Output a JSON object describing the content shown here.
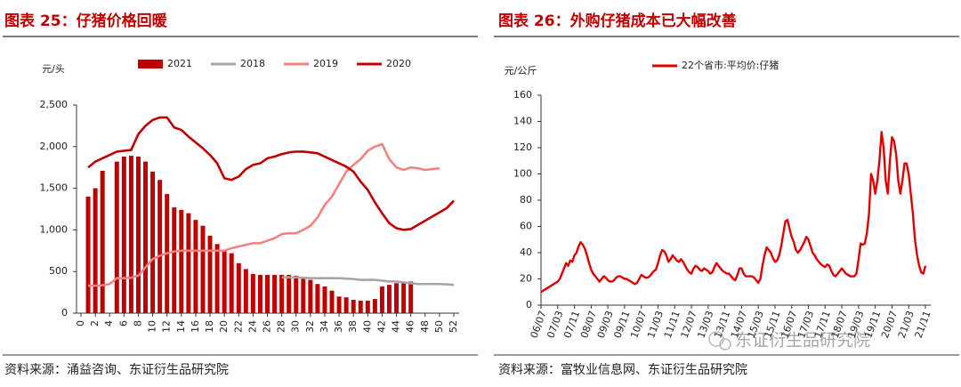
{
  "chart_data": [
    {
      "type": "bar",
      "title": "图表 25：仔猪价格回暖",
      "source": "资料来源：涌益咨询、东证衍生品研究院",
      "y_label": "元/头",
      "x": [
        1,
        2,
        3,
        4,
        5,
        6,
        7,
        8,
        9,
        10,
        11,
        12,
        13,
        14,
        15,
        16,
        17,
        18,
        19,
        20,
        21,
        22,
        23,
        24,
        25,
        26,
        27,
        28,
        29,
        30,
        31,
        32,
        33,
        34,
        35,
        36,
        37,
        38,
        39,
        40,
        41,
        42,
        43,
        44,
        45,
        46,
        47,
        48,
        49,
        50,
        51,
        52
      ],
      "xlim": [
        0,
        52
      ],
      "xticks": [
        0,
        2,
        4,
        6,
        8,
        10,
        12,
        14,
        16,
        18,
        20,
        22,
        24,
        26,
        28,
        30,
        32,
        34,
        36,
        38,
        40,
        42,
        44,
        46,
        48,
        50,
        52
      ],
      "ylim": [
        0,
        2500
      ],
      "yticks": [
        0,
        500,
        {
          "value": 1000,
          "label": "1,000"
        },
        {
          "value": 1500,
          "label": "1,500"
        },
        {
          "value": 2000,
          "label": "2,000"
        },
        {
          "value": 2500,
          "label": "2,500"
        }
      ],
      "series": [
        {
          "name": "2021",
          "type": "bar",
          "color": "#c00000",
          "values": [
            1400,
            1500,
            1710,
            null,
            1820,
            1880,
            1890,
            1880,
            1820,
            1700,
            1600,
            1430,
            1270,
            1240,
            1200,
            1120,
            1050,
            930,
            830,
            750,
            720,
            600,
            530,
            470,
            460,
            460,
            460,
            460,
            460,
            450,
            420,
            400,
            350,
            320,
            270,
            200,
            190,
            160,
            150,
            150,
            170,
            320,
            340,
            360,
            370,
            380,
            null,
            null,
            null,
            null,
            null,
            null
          ]
        },
        {
          "name": "2018",
          "type": "line",
          "color": "#a6a6a6",
          "values": [
            null,
            null,
            null,
            null,
            null,
            null,
            null,
            null,
            null,
            null,
            null,
            null,
            null,
            null,
            null,
            null,
            null,
            null,
            null,
            null,
            null,
            null,
            null,
            null,
            null,
            null,
            null,
            430,
            430,
            430,
            425,
            420,
            420,
            420,
            420,
            420,
            415,
            410,
            400,
            400,
            400,
            390,
            380,
            380,
            370,
            360,
            350,
            350,
            350,
            350,
            345,
            340
          ]
        },
        {
          "name": "2019",
          "type": "line",
          "color": "#f4817f",
          "values": [
            330,
            330,
            335,
            350,
            420,
            420,
            425,
            450,
            550,
            650,
            690,
            720,
            740,
            750,
            750,
            750,
            750,
            750,
            750,
            750,
            780,
            800,
            820,
            840,
            840,
            870,
            900,
            950,
            960,
            960,
            1000,
            1050,
            1150,
            1300,
            1400,
            1550,
            1700,
            1780,
            1850,
            1950,
            2000,
            2030,
            1850,
            1750,
            1720,
            1750,
            1740,
            1720,
            1730,
            1740,
            null,
            null
          ]
        },
        {
          "name": "2020",
          "type": "line",
          "color": "#c00000",
          "values": [
            1750,
            1820,
            1860,
            1900,
            1940,
            1950,
            1960,
            2150,
            2250,
            2320,
            2350,
            2350,
            2230,
            2200,
            2120,
            2050,
            1980,
            1900,
            1800,
            1620,
            1600,
            1640,
            1730,
            1780,
            1800,
            1860,
            1880,
            1910,
            1930,
            1940,
            1940,
            1930,
            1920,
            1880,
            1840,
            1800,
            1760,
            1700,
            1580,
            1480,
            1330,
            1200,
            1080,
            1020,
            1000,
            1010,
            1060,
            1110,
            1160,
            1210,
            1260,
            1350
          ]
        }
      ]
    },
    {
      "type": "line",
      "title": "图表 26：外购仔猪成本已大幅改善",
      "source": "资料来源：富牧业信息网、东证衍生品研究院",
      "y_label": "元/公斤",
      "categories": [
        "06/07",
        null,
        null,
        null,
        null,
        null,
        null,
        null,
        "07/03",
        null,
        null,
        null,
        null,
        null,
        null,
        null,
        "07/11",
        null,
        null,
        null,
        null,
        null,
        null,
        null,
        "08/07",
        null,
        null,
        null,
        null,
        null,
        null,
        null,
        "09/03",
        null,
        null,
        null,
        null,
        null,
        null,
        null,
        "09/11",
        null,
        null,
        null,
        null,
        null,
        null,
        null,
        "10/07",
        null,
        null,
        null,
        null,
        null,
        null,
        null,
        "11/03",
        null,
        null,
        null,
        null,
        null,
        null,
        null,
        "11/11",
        null,
        null,
        null,
        null,
        null,
        null,
        null,
        "12/07",
        null,
        null,
        null,
        null,
        null,
        null,
        null,
        "13/03",
        null,
        null,
        null,
        null,
        null,
        null,
        null,
        "13/11",
        null,
        null,
        null,
        null,
        null,
        null,
        null,
        "14/07",
        null,
        null,
        null,
        null,
        null,
        null,
        null,
        "15/03",
        null,
        null,
        null,
        null,
        null,
        null,
        null,
        "15/11",
        null,
        null,
        null,
        null,
        null,
        null,
        null,
        "16/07",
        null,
        null,
        null,
        null,
        null,
        null,
        null,
        "17/03",
        null,
        null,
        null,
        null,
        null,
        null,
        null,
        "17/11",
        null,
        null,
        null,
        null,
        null,
        null,
        null,
        "18/07",
        null,
        null,
        null,
        null,
        null,
        null,
        null,
        "19/03",
        null,
        null,
        null,
        null,
        null,
        null,
        null,
        "19/11",
        null,
        null,
        null,
        null,
        null,
        null,
        null,
        "20/07",
        null,
        null,
        null,
        null,
        null,
        null,
        null,
        "21/03",
        null,
        null,
        null,
        null,
        null,
        null,
        null,
        "21/11"
      ],
      "ylim": [
        0,
        160
      ],
      "yticks": [
        0,
        20,
        40,
        60,
        80,
        100,
        120,
        140,
        160
      ],
      "series": [
        {
          "name": "22个省市:平均价:仔猪",
          "type": "line",
          "color": "#e00000",
          "values": [
            10,
            11,
            12,
            13,
            14,
            15,
            16,
            17,
            18,
            20,
            24,
            28,
            32,
            30,
            34,
            33,
            38,
            40,
            45,
            48,
            46,
            43,
            38,
            32,
            27,
            24,
            22,
            20,
            18,
            20,
            22,
            21,
            19,
            18,
            18,
            19,
            21,
            22,
            22,
            21,
            20,
            20,
            19,
            18,
            17,
            16,
            17,
            20,
            23,
            22,
            21,
            21,
            22,
            24,
            26,
            27,
            32,
            38,
            42,
            41,
            38,
            33,
            35,
            38,
            36,
            34,
            33,
            35,
            33,
            30,
            27,
            25,
            24,
            28,
            30,
            29,
            27,
            26,
            28,
            27,
            26,
            24,
            25,
            29,
            32,
            30,
            28,
            26,
            25,
            24,
            24,
            22,
            20,
            19,
            23,
            28,
            28,
            24,
            22,
            22,
            22,
            22,
            21,
            19,
            17,
            20,
            30,
            38,
            44,
            42,
            40,
            36,
            33,
            34,
            38,
            45,
            55,
            64,
            65,
            58,
            52,
            48,
            42,
            40,
            42,
            45,
            48,
            52,
            50,
            45,
            40,
            38,
            35,
            33,
            31,
            30,
            29,
            31,
            30,
            26,
            23,
            22,
            24,
            26,
            28,
            26,
            24,
            23,
            22,
            22,
            22,
            24,
            35,
            47,
            46,
            47,
            55,
            70,
            100,
            95,
            85,
            95,
            110,
            132,
            120,
            95,
            85,
            110,
            128,
            125,
            115,
            95,
            85,
            95,
            108,
            108,
            100,
            85,
            70,
            50,
            38,
            30,
            25,
            24,
            30
          ]
        }
      ]
    }
  ],
  "watermark": "东证衍生品研究院"
}
